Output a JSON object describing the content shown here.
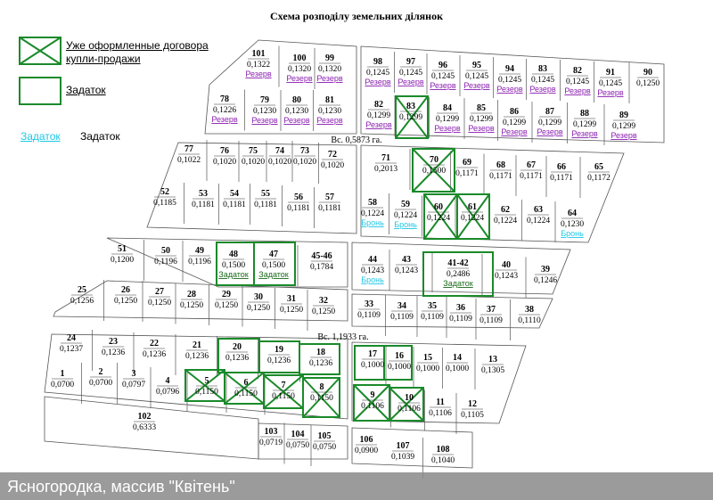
{
  "title": "Схема розподілу земельних ділянок",
  "legend": [
    "Уже оформленные договора купли-продажи",
    "Задаток"
  ],
  "links": [
    "Задаток",
    "Задаток"
  ],
  "roads": [
    "Вс. 0,5873 га.",
    "Вс. 1,1933 га."
  ],
  "footer": "Ясногородка, массив \"Квітень\"",
  "plots": [
    {
      "number": "101",
      "area": "0,1322",
      "status": "Резерв"
    },
    {
      "number": "100",
      "area": "0,1320",
      "status": "Резерв"
    },
    {
      "number": "99",
      "area": "0,1320",
      "status": "Резерв"
    },
    {
      "number": "98",
      "area": "0,1245",
      "status": "Резерв"
    },
    {
      "number": "97",
      "area": "0,1245",
      "status": "Резерв"
    },
    {
      "number": "96",
      "area": "0,1245",
      "status": "Резерв"
    },
    {
      "number": "95",
      "area": "0,1245",
      "status": "Резерв"
    },
    {
      "number": "94",
      "area": "0,1245",
      "status": "Резерв"
    },
    {
      "number": "83",
      "area": "0,1245",
      "status": "Резерв"
    },
    {
      "number": "82",
      "area": "0,1245",
      "status": "Резерв"
    },
    {
      "number": "91",
      "area": "0,1245",
      "status": "Резерв"
    },
    {
      "number": "90",
      "area": "0,1250"
    },
    {
      "number": "78",
      "area": "0,1226",
      "status": "Резерв"
    },
    {
      "number": "79",
      "area": "0,1230",
      "status": "Резерв"
    },
    {
      "number": "80",
      "area": "0,1230",
      "status": "Резерв"
    },
    {
      "number": "81",
      "area": "0,1230",
      "status": "Резерв"
    },
    {
      "number": "82",
      "area": "0,1299",
      "status": "Резерв"
    },
    {
      "number": "83",
      "area": "0,1299"
    },
    {
      "number": "84",
      "area": "0,1299",
      "status": "Резерв"
    },
    {
      "number": "85",
      "area": "0,1299",
      "status": "Резерв"
    },
    {
      "number": "86",
      "area": "0,1299",
      "status": "Резерв"
    },
    {
      "number": "87",
      "area": "0,1299",
      "status": "Резерв"
    },
    {
      "number": "88",
      "area": "0,1299",
      "status": "Резерв"
    },
    {
      "number": "89",
      "area": "0,1299",
      "status": "Резерв"
    },
    {
      "number": "77",
      "area": "0,1022"
    },
    {
      "number": "76",
      "area": "0,1020"
    },
    {
      "number": "75",
      "area": "0,1020"
    },
    {
      "number": "74",
      "area": "0,1020"
    },
    {
      "number": "73",
      "area": "0,1020"
    },
    {
      "number": "72",
      "area": "0,1020"
    },
    {
      "number": "71",
      "area": "0,2013"
    },
    {
      "number": "70",
      "area": "0,1500"
    },
    {
      "number": "69",
      "area": "0,1171"
    },
    {
      "number": "68",
      "area": "0,1171"
    },
    {
      "number": "67",
      "area": "0,1171"
    },
    {
      "number": "66",
      "area": "0,1171"
    },
    {
      "number": "65",
      "area": "0,1172"
    },
    {
      "number": "52",
      "area": "0,1185"
    },
    {
      "number": "53",
      "area": "0,1181"
    },
    {
      "number": "54",
      "area": "0,1181"
    },
    {
      "number": "55",
      "area": "0,1181"
    },
    {
      "number": "56",
      "area": "0,1181"
    },
    {
      "number": "57",
      "area": "0,1181"
    },
    {
      "number": "58",
      "area": "0,1224",
      "status": "Бронь"
    },
    {
      "number": "59",
      "area": "0,1224",
      "status": "Бронь"
    },
    {
      "number": "60",
      "area": "0,1224"
    },
    {
      "number": "61",
      "area": "0,1224"
    },
    {
      "number": "62",
      "area": "0,1224"
    },
    {
      "number": "63",
      "area": "0,1224"
    },
    {
      "number": "64",
      "area": "0,1230",
      "status": "Бронь"
    },
    {
      "number": "51",
      "area": "0,1200"
    },
    {
      "number": "50",
      "area": "0,1196"
    },
    {
      "number": "49",
      "area": "0,1196"
    },
    {
      "number": "48",
      "area": "0,1500",
      "status": "Задаток"
    },
    {
      "number": "47",
      "area": "0,1500",
      "status": "Задаток"
    },
    {
      "number": "45-46",
      "area": "0,1784"
    },
    {
      "number": "44",
      "area": "0,1243",
      "status": "Бронь"
    },
    {
      "number": "43",
      "area": "0,1243"
    },
    {
      "number": "41-42",
      "area": "0,2486",
      "status": "Задаток"
    },
    {
      "number": "40",
      "area": "0,1243"
    },
    {
      "number": "39",
      "area": "0,1246"
    },
    {
      "number": "25",
      "area": "0,1256"
    },
    {
      "number": "26",
      "area": "0,1250"
    },
    {
      "number": "27",
      "area": "0,1250"
    },
    {
      "number": "28",
      "area": "0,1250"
    },
    {
      "number": "29",
      "area": "0,1250"
    },
    {
      "number": "30",
      "area": "0,1250"
    },
    {
      "number": "31",
      "area": "0,1250"
    },
    {
      "number": "32",
      "area": "0,1250"
    },
    {
      "number": "33",
      "area": "0,1109"
    },
    {
      "number": "34",
      "area": "0,1109"
    },
    {
      "number": "35",
      "area": "0,1109"
    },
    {
      "number": "36",
      "area": "0,1109"
    },
    {
      "number": "37",
      "area": "0,1109"
    },
    {
      "number": "38",
      "area": "0,1110"
    },
    {
      "number": "24",
      "area": "0,1237"
    },
    {
      "number": "23",
      "area": "0,1236"
    },
    {
      "number": "22",
      "area": "0,1236"
    },
    {
      "number": "21",
      "area": "0,1236"
    },
    {
      "number": "20",
      "area": "0,1236"
    },
    {
      "number": "19",
      "area": "0,1236"
    },
    {
      "number": "18",
      "area": "0,1236"
    },
    {
      "number": "17",
      "area": "0,1000"
    },
    {
      "number": "16",
      "area": "0,1000"
    },
    {
      "number": "15",
      "area": "0,1000"
    },
    {
      "number": "14",
      "area": "0,1000"
    },
    {
      "number": "13",
      "area": "0,1305"
    },
    {
      "number": "1",
      "area": "0,0700"
    },
    {
      "number": "2",
      "area": "0,0700"
    },
    {
      "number": "3",
      "area": "0,0797"
    },
    {
      "number": "4",
      "area": "0,0796"
    },
    {
      "number": "5",
      "area": "0,1150"
    },
    {
      "number": "6",
      "area": "0,1150"
    },
    {
      "number": "7",
      "area": "0,1150"
    },
    {
      "number": "8",
      "area": "0,1150"
    },
    {
      "number": "9",
      "area": "0,1106"
    },
    {
      "number": "10",
      "area": "0,1106"
    },
    {
      "number": "11",
      "area": "0,1106"
    },
    {
      "number": "12",
      "area": "0,1105"
    },
    {
      "number": "102",
      "area": "0,6333"
    },
    {
      "number": "103",
      "area": "0,0719"
    },
    {
      "number": "104",
      "area": "0,0750"
    },
    {
      "number": "105",
      "area": "0,0750"
    },
    {
      "number": "106",
      "area": "0,0900"
    },
    {
      "number": "107",
      "area": "0,1039"
    },
    {
      "number": "108",
      "area": "0,1040"
    }
  ]
}
